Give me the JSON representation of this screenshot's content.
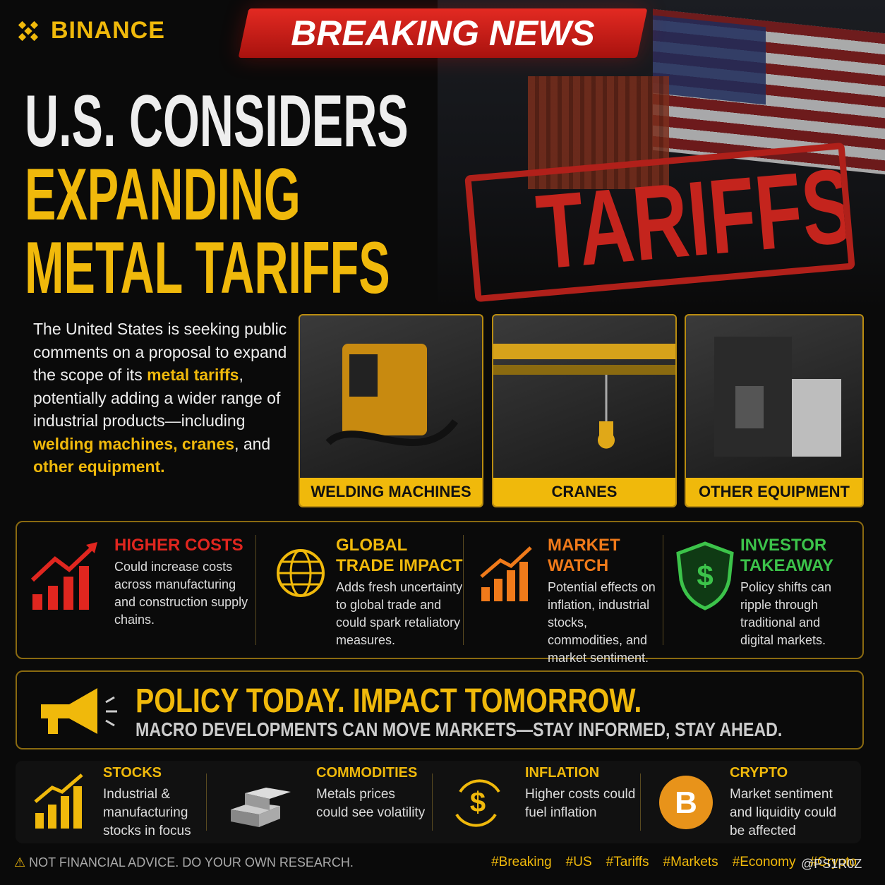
{
  "brand": "BINANCE",
  "banner": "BREAKING NEWS",
  "headline": {
    "line1": "U.S. CONSIDERS",
    "line2": "EXPANDING",
    "line3": "METAL TARIFFS"
  },
  "stamp": "TARIFFS",
  "intro": {
    "segments": [
      {
        "text": "The United States is seeking public comments on a proposal to expand the scope of its ",
        "highlight": false
      },
      {
        "text": "metal tariffs",
        "highlight": true
      },
      {
        "text": ", potentially adding a wider range of industrial products—including ",
        "highlight": false
      },
      {
        "text": "welding machines, cranes",
        "highlight": true
      },
      {
        "text": ", and ",
        "highlight": false
      },
      {
        "text": "other equipment.",
        "highlight": true
      }
    ]
  },
  "products": [
    "WELDING MACHINES",
    "CRANES",
    "OTHER EQUIPMENT"
  ],
  "impacts": [
    {
      "title": "HIGHER COSTS",
      "text": "Could increase costs across manufacturing and construction supply chains.",
      "color": "#e0261f"
    },
    {
      "title": "GLOBAL TRADE IMPACT",
      "text": "Adds fresh uncertainty to global trade and could spark retaliatory measures.",
      "color": "#f0b90b"
    },
    {
      "title": "MARKET WATCH",
      "text": "Potential effects on inflation, industrial stocks, commodities, and market sentiment.",
      "color": "#f07a1a"
    },
    {
      "title": "INVESTOR TAKEAWAY",
      "text": "Policy shifts can ripple through traditional and digital markets.",
      "color": "#3cc34a"
    }
  ],
  "slogan": {
    "title": "POLICY TODAY. IMPACT TOMORROW.",
    "subtitle": "MACRO DEVELOPMENTS CAN MOVE MARKETS—STAY INFORMED, STAY AHEAD."
  },
  "markets": [
    {
      "title": "STOCKS",
      "text": "Industrial & manufacturing stocks in focus"
    },
    {
      "title": "COMMODITIES",
      "text": "Metals prices could see volatility"
    },
    {
      "title": "INFLATION",
      "text": "Higher costs could fuel inflation"
    },
    {
      "title": "CRYPTO",
      "text": "Market sentiment and liquidity could be affected"
    }
  ],
  "disclaimer": "NOT FINANCIAL ADVICE. DO YOUR OWN RESEARCH.",
  "hashtags": [
    "#Breaking",
    "#US",
    "#Tariffs",
    "#Markets",
    "#Economy",
    "#Crypto"
  ],
  "watermark": "@PS1R0Z"
}
